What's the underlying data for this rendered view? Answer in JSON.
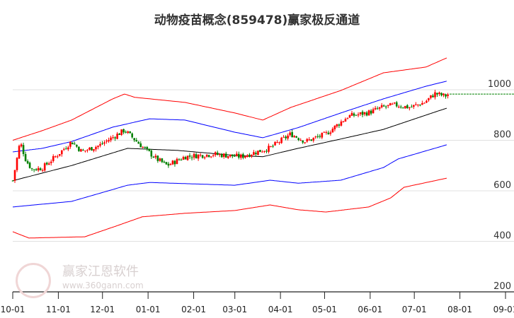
{
  "chart_data": {
    "type": "candlestick",
    "title": "动物疫苗概念(859478)赢家极反通道",
    "xlabel": "",
    "ylabel": "",
    "ylim": [
      200,
      1150
    ],
    "yticks": [
      1000,
      800,
      600,
      400,
      200
    ],
    "ytick_labels": [
      "1000",
      "800",
      "600",
      "400",
      "200"
    ],
    "x_unit": "days since 10-01",
    "xlim": [
      0,
      335
    ],
    "xticks": [
      0,
      31,
      61,
      92,
      123,
      151,
      182,
      212,
      243,
      273,
      304,
      335
    ],
    "xtick_labels": [
      "10-01",
      "11-01",
      "12-01",
      "01-01",
      "02-01",
      "03-01",
      "04-01",
      "05-01",
      "06-01",
      "07-01",
      "08-01",
      "09-01"
    ],
    "grid": true,
    "colors": {
      "up": "#ff0000",
      "down": "#008000",
      "outer": "#ff0000",
      "inner": "#0000ff",
      "mid": "#000000",
      "last": "#008000",
      "grid": "#e0e0e0"
    },
    "last_price": 983,
    "price": {
      "x": [
        0,
        2,
        5,
        9,
        13,
        20,
        30,
        40,
        47,
        59,
        76,
        88,
        98,
        105,
        117,
        136,
        155,
        175,
        189,
        199,
        213,
        228,
        242,
        251,
        260,
        270,
        280,
        287,
        294,
        296
      ],
      "y": [
        640,
        700,
        795,
        720,
        685,
        690,
        740,
        795,
        755,
        780,
        840,
        775,
        725,
        700,
        735,
        745,
        735,
        770,
        825,
        795,
        825,
        895,
        910,
        930,
        940,
        930,
        950,
        985,
        975,
        983
      ]
    },
    "series": [
      {
        "name": "outer_upper",
        "x": [
          0,
          20,
          40,
          68,
          76,
          83,
          117,
          151,
          170,
          189,
          223,
          252,
          281,
          295
        ],
        "y": [
          800,
          838,
          880,
          964,
          983,
          970,
          950,
          908,
          880,
          930,
          997,
          1067,
          1090,
          1126
        ]
      },
      {
        "name": "inner_upper",
        "x": [
          0,
          20,
          40,
          68,
          93,
          117,
          151,
          170,
          194,
          223,
          252,
          281,
          295
        ],
        "y": [
          754,
          768,
          795,
          852,
          885,
          880,
          832,
          810,
          850,
          908,
          964,
          1014,
          1034
        ]
      },
      {
        "name": "middle",
        "x": [
          0,
          40,
          78,
          112,
          151,
          170,
          194,
          223,
          252,
          281,
          295
        ],
        "y": [
          640,
          700,
          768,
          760,
          740,
          735,
          768,
          805,
          843,
          900,
          927
        ]
      },
      {
        "name": "inner_lower",
        "x": [
          0,
          40,
          78,
          93,
          151,
          175,
          194,
          223,
          252,
          262,
          295
        ],
        "y": [
          536,
          558,
          622,
          633,
          622,
          642,
          630,
          642,
          692,
          726,
          782
        ]
      },
      {
        "name": "outer_lower",
        "x": [
          0,
          11,
          49,
          73,
          88,
          117,
          151,
          175,
          194,
          213,
          242,
          257,
          266,
          295
        ],
        "y": [
          438,
          413,
          418,
          466,
          497,
          511,
          522,
          544,
          525,
          516,
          536,
          572,
          614,
          650
        ]
      }
    ]
  },
  "watermark": {
    "brand": "赢家江恩软件",
    "url": "www.360gann.com",
    "seal": [
      "江",
      "赢",
      "恩",
      "家"
    ]
  }
}
